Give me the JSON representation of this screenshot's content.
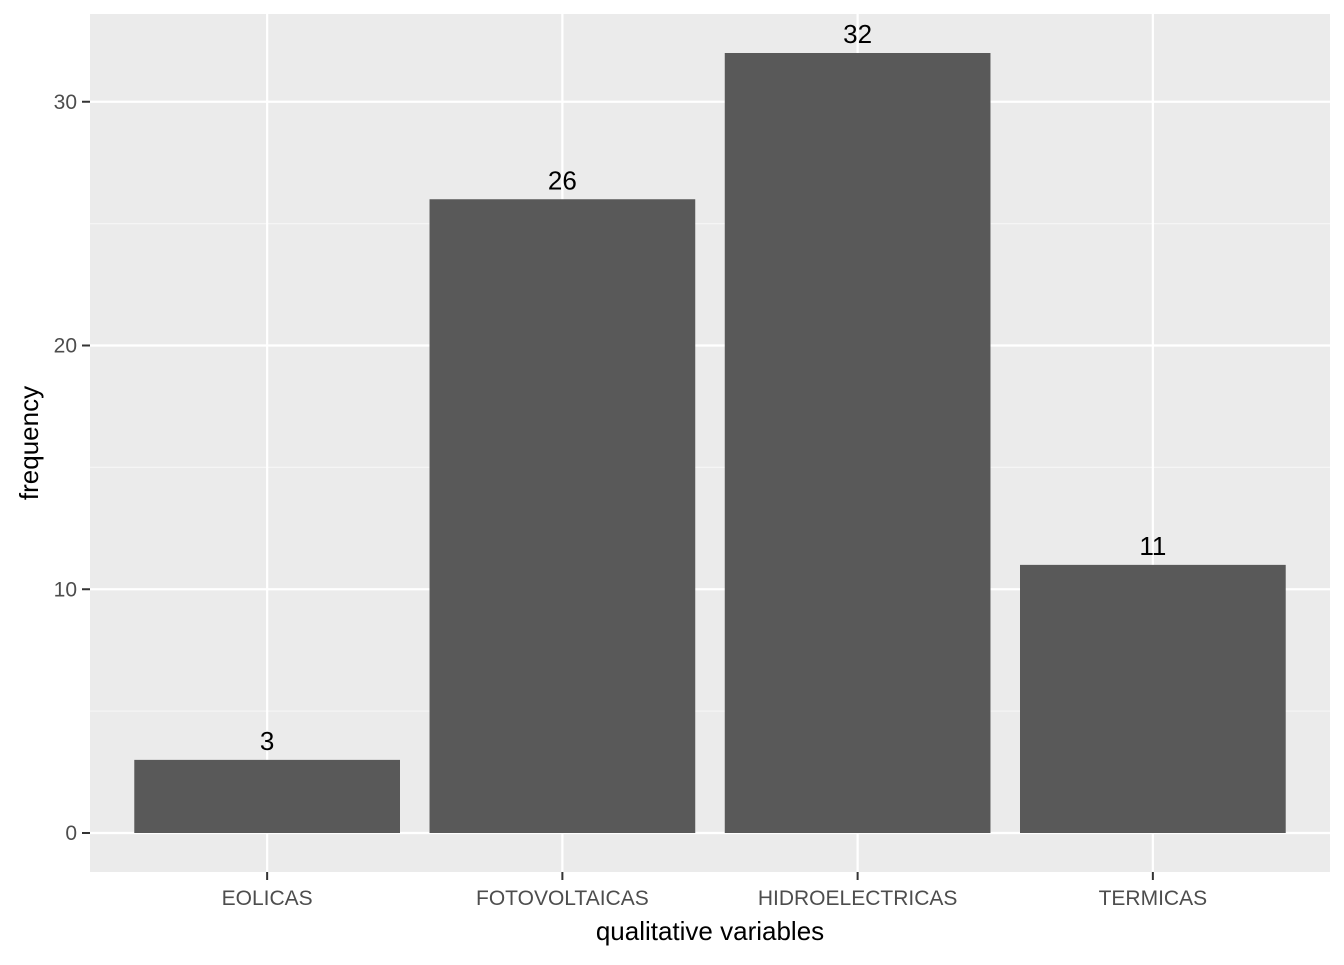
{
  "chart_data": {
    "type": "bar",
    "title": "",
    "xlabel": "qualitative variables",
    "ylabel": "frequency",
    "categories": [
      "EOLICAS",
      "FOTOVOLTAICAS",
      "HIDROELECTRICAS",
      "TERMICAS"
    ],
    "values": [
      3,
      26,
      32,
      11
    ],
    "data_labels": [
      "3",
      "26",
      "32",
      "11"
    ],
    "y_ticks": [
      0,
      10,
      20,
      30
    ],
    "y_tick_labels": [
      "0",
      "10",
      "20",
      "30"
    ],
    "ylim": [
      -1.6,
      33.6
    ],
    "grid": true,
    "legend": "none",
    "colors": {
      "panel_background": "#EBEBEB",
      "grid_major": "#FFFFFF",
      "grid_minor": "#F5F5F5",
      "bar_fill": "#595959",
      "tick_mark": "#333333"
    }
  }
}
